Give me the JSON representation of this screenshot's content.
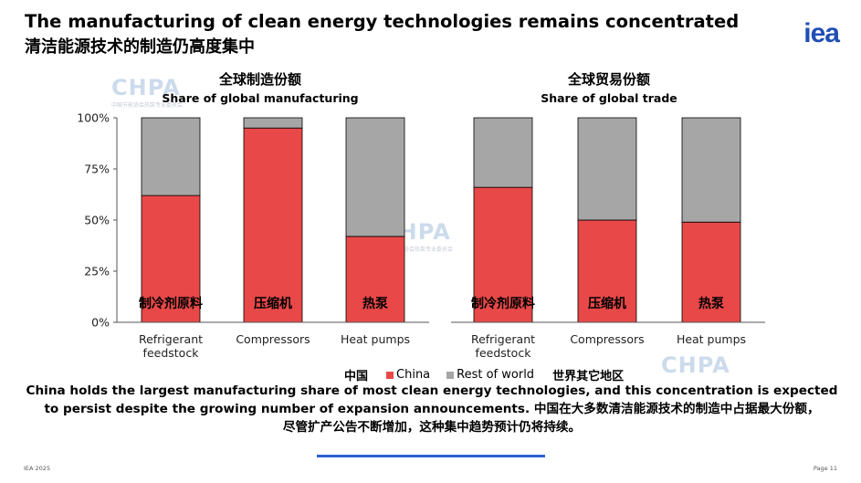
{
  "header": {
    "title_en": "The manufacturing of clean energy technologies remains concentrated",
    "title_zh": "清洁能源技术的制造仍高度集中",
    "logo": "iea"
  },
  "watermark": {
    "text": "CHPA",
    "sub": "中国节能协会热泵专业委员会"
  },
  "colors": {
    "china": "#e84848",
    "rest": "#a6a6a6",
    "accent": "#2f5fd0"
  },
  "chart_data": [
    {
      "type": "bar",
      "stacked": true,
      "title_zh": "全球制造份额",
      "title": "Share of global manufacturing",
      "categories": [
        "Refrigerant feedstock",
        "Compressors",
        "Heat pumps"
      ],
      "category_lines": [
        [
          "Refrigerant",
          "feedstock"
        ],
        [
          "Compressors"
        ],
        [
          "Heat pumps"
        ]
      ],
      "category_labels_zh": [
        "制冷剂原料",
        "压缩机",
        "热泵"
      ],
      "series": [
        {
          "name": "China",
          "values": [
            62,
            95,
            42
          ]
        },
        {
          "name": "Rest of world",
          "values": [
            38,
            5,
            58
          ]
        }
      ],
      "ylim": [
        0,
        100
      ],
      "yticks": [
        "0%",
        "25%",
        "50%",
        "75%",
        "100%"
      ]
    },
    {
      "type": "bar",
      "stacked": true,
      "title_zh": "全球贸易份额",
      "title": "Share of global trade",
      "categories": [
        "Refrigerant feedstock",
        "Compressors",
        "Heat pumps"
      ],
      "category_lines": [
        [
          "Refrigerant",
          "feedstock"
        ],
        [
          "Compressors"
        ],
        [
          "Heat pumps"
        ]
      ],
      "category_labels_zh": [
        "制冷剂原料",
        "压缩机",
        "热泵"
      ],
      "series": [
        {
          "name": "China",
          "values": [
            66,
            50,
            49
          ]
        },
        {
          "name": "Rest of world",
          "values": [
            34,
            50,
            51
          ]
        }
      ],
      "ylim": [
        0,
        100
      ]
    }
  ],
  "legend": {
    "china_zh": "中国",
    "china": "China",
    "rest": "Rest of world",
    "rest_zh": "世界其它地区"
  },
  "caption": {
    "line1": "China holds the largest manufacturing share of most clean energy technologies, and this concentration is expected",
    "line2": "to persist despite the growing number of expansion announcements.  中国在大多数清洁能源技术的制造中占据最大份额，",
    "line3": "尽管扩产公告不断增加，这种集中趋势预计仍将持续。"
  },
  "footer": {
    "left": "IEA 2025",
    "right": "Page 11"
  }
}
